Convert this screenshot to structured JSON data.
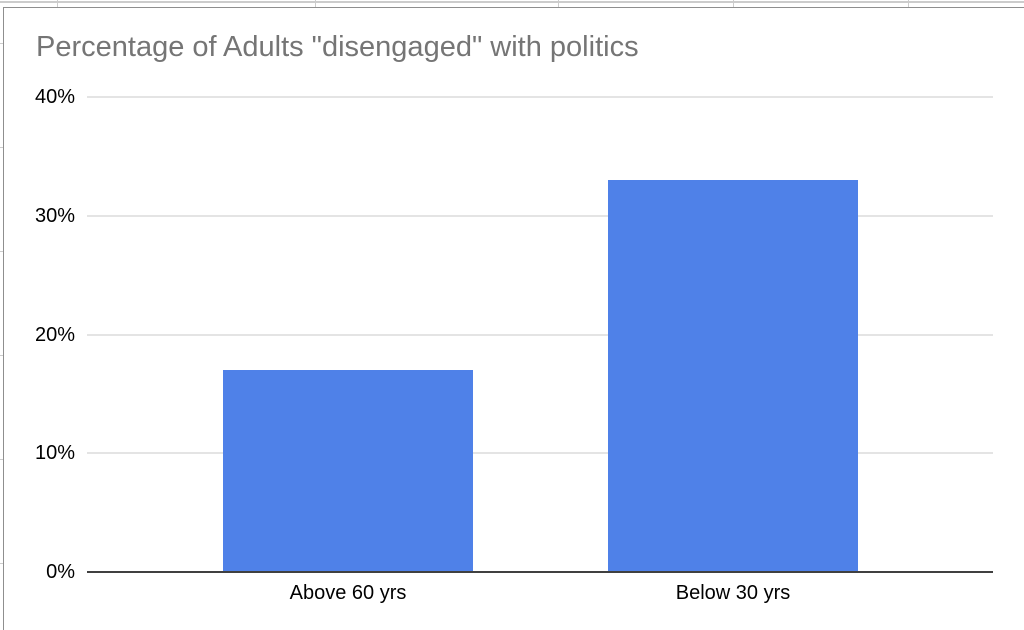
{
  "chart_data": {
    "type": "bar",
    "title": "Percentage of Adults \"disengaged\" with politics",
    "categories": [
      "Above 60 yrs",
      "Below 30 yrs"
    ],
    "values": [
      17,
      33
    ],
    "xlabel": "",
    "ylabel": "",
    "ylim": [
      0,
      40
    ],
    "yticks": [
      0,
      10,
      20,
      30,
      40
    ],
    "ytick_suffix": "%",
    "grid": true,
    "legend": false
  },
  "colors": {
    "bar": "#4f81e8",
    "title": "#757575",
    "axis_labels": "#000000",
    "gridline": "#e4e4e4",
    "zero_line": "#404040",
    "panel_border": "#8f8f8f",
    "sheet_gridline": "#cccccc",
    "background": "#ffffff"
  }
}
